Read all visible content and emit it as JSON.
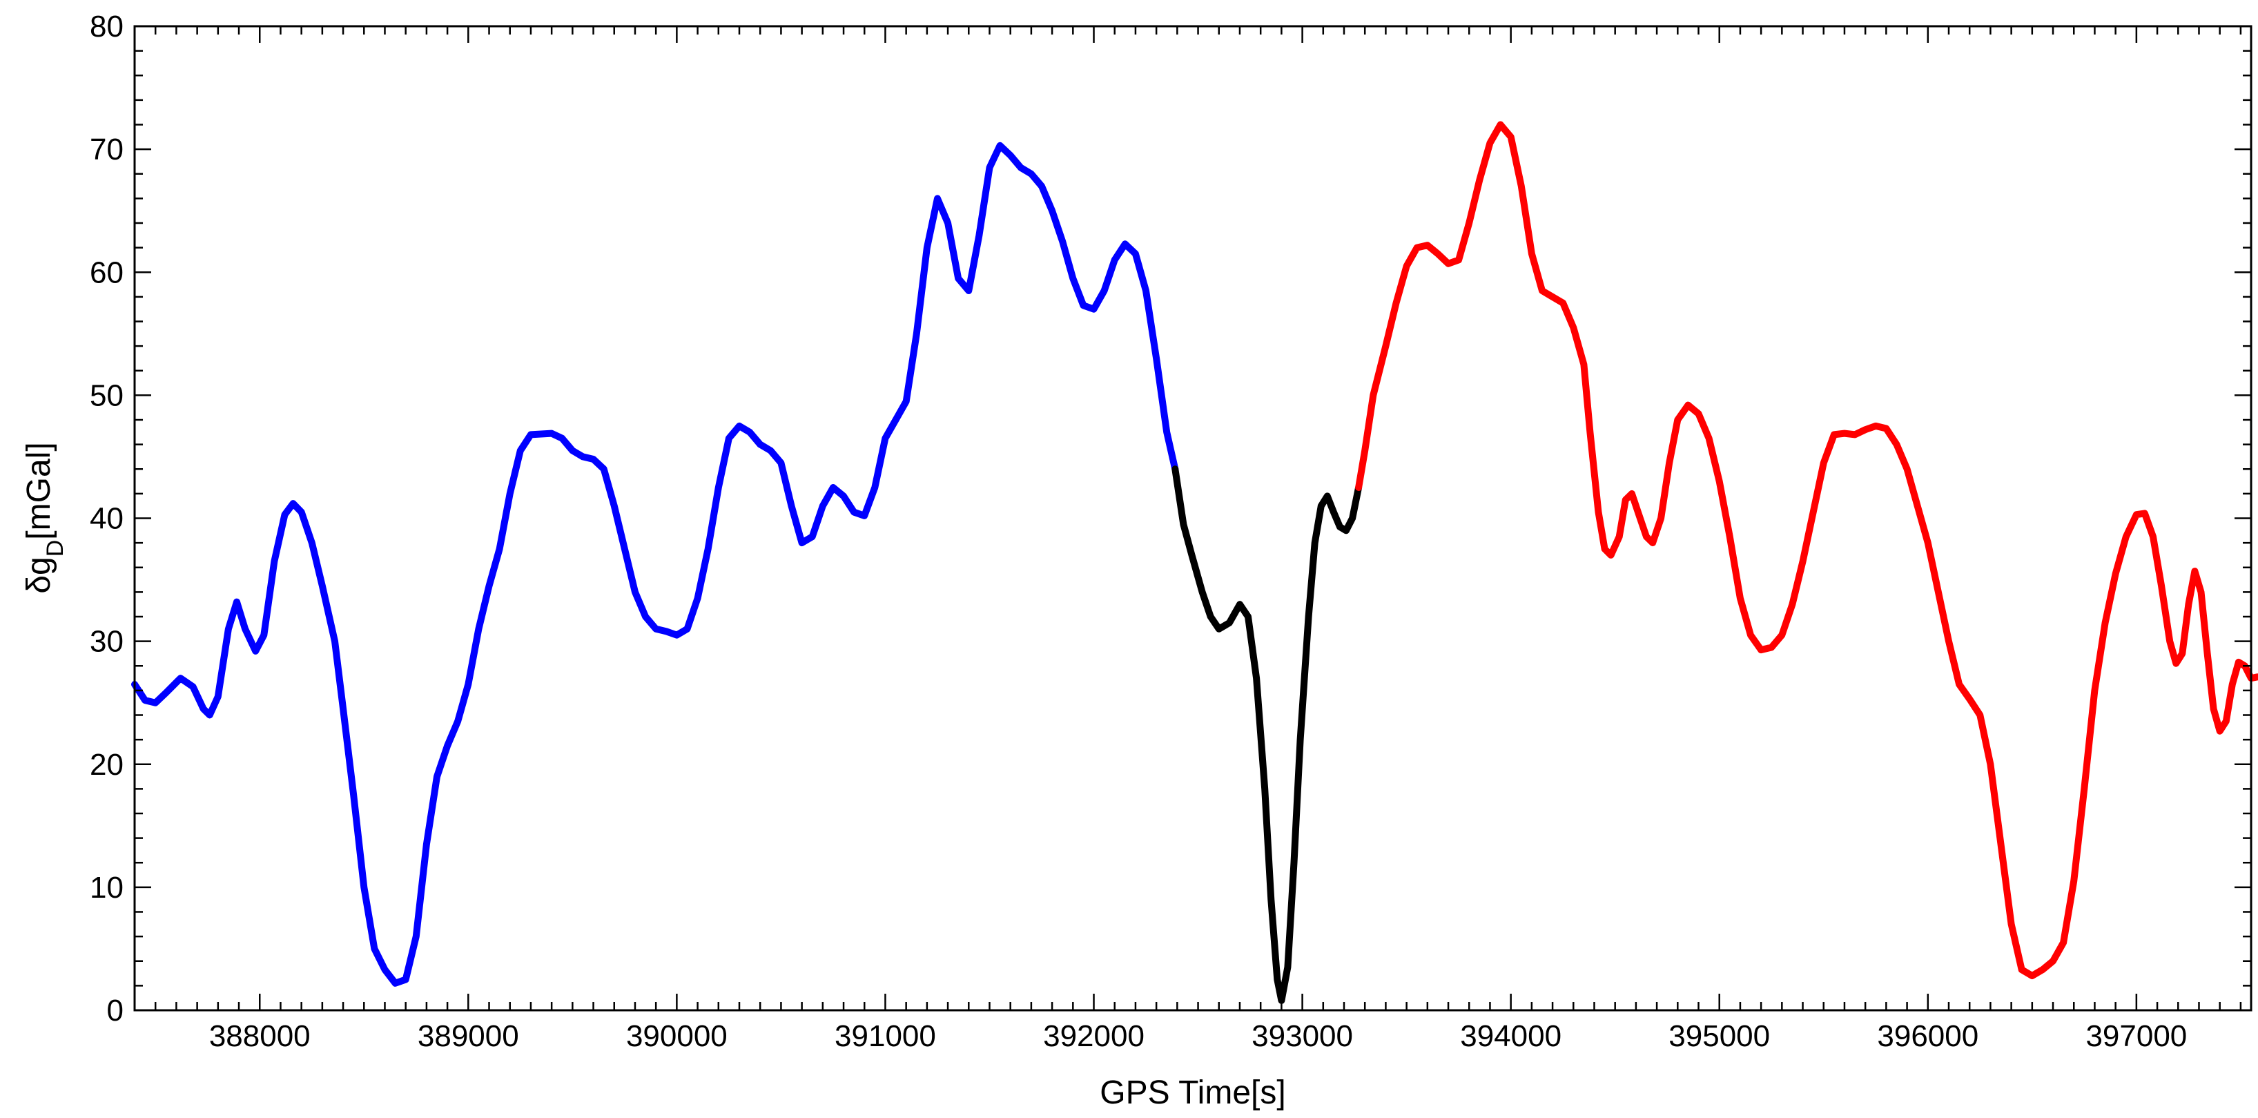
{
  "chart_data": {
    "type": "line",
    "xlabel": "GPS Time[s]",
    "ylabel": {
      "prefix": "δg",
      "subscript": "D",
      "suffix": "[mGal]"
    },
    "xlim": [
      387400,
      397550
    ],
    "ylim": [
      0,
      80
    ],
    "x_ticks": [
      388000,
      389000,
      390000,
      391000,
      392000,
      393000,
      394000,
      395000,
      396000,
      397000
    ],
    "y_ticks": [
      0,
      10,
      20,
      30,
      40,
      50,
      60,
      70,
      80
    ],
    "x_minor_step": 100,
    "y_minor_step": 2,
    "grid": false,
    "series": [
      {
        "color": "#0000ff",
        "points": [
          [
            387400,
            26.5
          ],
          [
            387450,
            25.2
          ],
          [
            387500,
            25.0
          ],
          [
            387550,
            25.8
          ],
          [
            387620,
            27.0
          ],
          [
            387680,
            26.3
          ],
          [
            387730,
            24.5
          ],
          [
            387760,
            24.0
          ],
          [
            387800,
            25.5
          ],
          [
            387850,
            31.0
          ],
          [
            387890,
            33.2
          ],
          [
            387930,
            31.0
          ],
          [
            387980,
            29.2
          ],
          [
            388020,
            30.5
          ],
          [
            388070,
            36.5
          ],
          [
            388120,
            40.3
          ],
          [
            388160,
            41.2
          ],
          [
            388200,
            40.5
          ],
          [
            388250,
            38.0
          ],
          [
            388300,
            34.5
          ],
          [
            388360,
            30.0
          ],
          [
            388400,
            24.5
          ],
          [
            388450,
            17.5
          ],
          [
            388500,
            10.0
          ],
          [
            388550,
            5.0
          ],
          [
            388600,
            3.3
          ],
          [
            388650,
            2.2
          ],
          [
            388700,
            2.5
          ],
          [
            388750,
            6.0
          ],
          [
            388800,
            13.5
          ],
          [
            388850,
            19.0
          ],
          [
            388900,
            21.5
          ],
          [
            388950,
            23.5
          ],
          [
            389000,
            26.5
          ],
          [
            389050,
            31.0
          ],
          [
            389100,
            34.5
          ],
          [
            389150,
            37.5
          ],
          [
            389200,
            42.0
          ],
          [
            389250,
            45.5
          ],
          [
            389300,
            46.8
          ],
          [
            389400,
            46.9
          ],
          [
            389450,
            46.5
          ],
          [
            389500,
            45.5
          ],
          [
            389550,
            45.0
          ],
          [
            389600,
            44.8
          ],
          [
            389650,
            44.0
          ],
          [
            389700,
            41.0
          ],
          [
            389750,
            37.5
          ],
          [
            389800,
            34.0
          ],
          [
            389850,
            32.0
          ],
          [
            389900,
            31.0
          ],
          [
            389950,
            30.8
          ],
          [
            390000,
            30.5
          ],
          [
            390050,
            31.0
          ],
          [
            390100,
            33.5
          ],
          [
            390150,
            37.5
          ],
          [
            390200,
            42.5
          ],
          [
            390250,
            46.5
          ],
          [
            390300,
            47.5
          ],
          [
            390350,
            47.0
          ],
          [
            390400,
            46.0
          ],
          [
            390450,
            45.5
          ],
          [
            390500,
            44.5
          ],
          [
            390550,
            41.0
          ],
          [
            390600,
            38.0
          ],
          [
            390650,
            38.5
          ],
          [
            390700,
            41.0
          ],
          [
            390750,
            42.5
          ],
          [
            390800,
            41.8
          ],
          [
            390850,
            40.5
          ],
          [
            390900,
            40.2
          ],
          [
            390950,
            42.5
          ],
          [
            391000,
            46.5
          ],
          [
            391050,
            48.0
          ],
          [
            391100,
            49.5
          ],
          [
            391150,
            55.0
          ],
          [
            391200,
            62.0
          ],
          [
            391250,
            66.0
          ],
          [
            391300,
            64.0
          ],
          [
            391350,
            59.5
          ],
          [
            391400,
            58.5
          ],
          [
            391450,
            63.0
          ],
          [
            391500,
            68.5
          ],
          [
            391550,
            70.3
          ],
          [
            391600,
            69.5
          ],
          [
            391650,
            68.5
          ],
          [
            391700,
            68.0
          ],
          [
            391750,
            67.0
          ],
          [
            391800,
            65.0
          ],
          [
            391850,
            62.5
          ],
          [
            391900,
            59.5
          ],
          [
            391950,
            57.3
          ],
          [
            392000,
            57.0
          ],
          [
            392050,
            58.5
          ],
          [
            392100,
            61.0
          ],
          [
            392150,
            62.3
          ],
          [
            392200,
            61.5
          ],
          [
            392250,
            58.5
          ],
          [
            392300,
            53.0
          ],
          [
            392350,
            47.0
          ],
          [
            392390,
            44.0
          ]
        ]
      },
      {
        "color": "#000000",
        "points": [
          [
            392390,
            44.0
          ],
          [
            392430,
            39.5
          ],
          [
            392470,
            37.0
          ],
          [
            392520,
            34.0
          ],
          [
            392560,
            32.0
          ],
          [
            392600,
            31.0
          ],
          [
            392650,
            31.5
          ],
          [
            392700,
            33.0
          ],
          [
            392740,
            32.0
          ],
          [
            392780,
            27.0
          ],
          [
            392820,
            18.0
          ],
          [
            392850,
            9.0
          ],
          [
            392880,
            2.5
          ],
          [
            392900,
            0.8
          ],
          [
            392930,
            3.5
          ],
          [
            392960,
            12.0
          ],
          [
            392990,
            22.0
          ],
          [
            393030,
            32.0
          ],
          [
            393060,
            38.0
          ],
          [
            393090,
            41.0
          ],
          [
            393120,
            41.8
          ],
          [
            393150,
            40.5
          ],
          [
            393180,
            39.3
          ],
          [
            393210,
            39.0
          ],
          [
            393240,
            40.0
          ],
          [
            393270,
            42.5
          ]
        ]
      },
      {
        "color": "#ff0000",
        "points": [
          [
            393270,
            42.5
          ],
          [
            393300,
            45.5
          ],
          [
            393340,
            50.0
          ],
          [
            393400,
            54.0
          ],
          [
            393450,
            57.5
          ],
          [
            393500,
            60.5
          ],
          [
            393550,
            62.0
          ],
          [
            393600,
            62.2
          ],
          [
            393650,
            61.5
          ],
          [
            393700,
            60.7
          ],
          [
            393750,
            61.0
          ],
          [
            393800,
            64.0
          ],
          [
            393850,
            67.5
          ],
          [
            393900,
            70.5
          ],
          [
            393950,
            72.0
          ],
          [
            394000,
            71.0
          ],
          [
            394050,
            67.0
          ],
          [
            394100,
            61.5
          ],
          [
            394150,
            58.5
          ],
          [
            394200,
            58.0
          ],
          [
            394250,
            57.5
          ],
          [
            394300,
            55.5
          ],
          [
            394350,
            52.5
          ],
          [
            394380,
            47.0
          ],
          [
            394420,
            40.5
          ],
          [
            394450,
            37.5
          ],
          [
            394480,
            37.0
          ],
          [
            394520,
            38.5
          ],
          [
            394550,
            41.5
          ],
          [
            394580,
            42.0
          ],
          [
            394610,
            40.5
          ],
          [
            394650,
            38.5
          ],
          [
            394680,
            38.0
          ],
          [
            394720,
            40.0
          ],
          [
            394760,
            44.5
          ],
          [
            394800,
            48.0
          ],
          [
            394850,
            49.2
          ],
          [
            394900,
            48.5
          ],
          [
            394950,
            46.5
          ],
          [
            395000,
            43.0
          ],
          [
            395050,
            38.5
          ],
          [
            395100,
            33.5
          ],
          [
            395150,
            30.5
          ],
          [
            395200,
            29.3
          ],
          [
            395250,
            29.5
          ],
          [
            395300,
            30.5
          ],
          [
            395350,
            33.0
          ],
          [
            395400,
            36.5
          ],
          [
            395450,
            40.5
          ],
          [
            395500,
            44.5
          ],
          [
            395550,
            46.8
          ],
          [
            395600,
            46.9
          ],
          [
            395650,
            46.8
          ],
          [
            395700,
            47.2
          ],
          [
            395750,
            47.5
          ],
          [
            395800,
            47.3
          ],
          [
            395850,
            46.0
          ],
          [
            395900,
            44.0
          ],
          [
            395950,
            41.0
          ],
          [
            396000,
            38.0
          ],
          [
            396050,
            34.0
          ],
          [
            396100,
            30.0
          ],
          [
            396150,
            26.5
          ],
          [
            396200,
            25.3
          ],
          [
            396250,
            24.0
          ],
          [
            396300,
            20.0
          ],
          [
            396350,
            13.5
          ],
          [
            396400,
            7.0
          ],
          [
            396450,
            3.3
          ],
          [
            396500,
            2.8
          ],
          [
            396550,
            3.3
          ],
          [
            396600,
            4.0
          ],
          [
            396650,
            5.5
          ],
          [
            396700,
            10.5
          ],
          [
            396750,
            18.0
          ],
          [
            396800,
            26.0
          ],
          [
            396850,
            31.5
          ],
          [
            396900,
            35.5
          ],
          [
            396950,
            38.5
          ],
          [
            397000,
            40.3
          ],
          [
            397040,
            40.4
          ],
          [
            397080,
            38.5
          ],
          [
            397120,
            34.5
          ],
          [
            397160,
            30.0
          ],
          [
            397190,
            28.2
          ],
          [
            397220,
            29.0
          ],
          [
            397250,
            33.0
          ],
          [
            397280,
            35.7
          ],
          [
            397310,
            34.0
          ],
          [
            397340,
            29.0
          ],
          [
            397370,
            24.5
          ],
          [
            397400,
            22.7
          ],
          [
            397430,
            23.5
          ],
          [
            397460,
            26.5
          ],
          [
            397490,
            28.3
          ],
          [
            397520,
            28.0
          ],
          [
            397550,
            27.0
          ],
          [
            397580,
            27.1
          ]
        ]
      }
    ]
  }
}
